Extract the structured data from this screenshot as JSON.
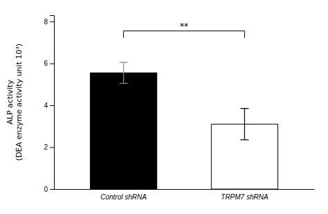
{
  "chart_data": {
    "type": "bar",
    "categories": [
      "Control shRNA",
      "TRPM7 shRNA"
    ],
    "values": [
      5.55,
      3.1
    ],
    "errors": [
      0.5,
      0.75
    ],
    "colors": [
      "black",
      "white"
    ],
    "ylabel": "ALP activity\n(DEA enzyme activity unit 10³)",
    "ylim": [
      0,
      8.3
    ],
    "yticks": [
      0,
      2,
      4,
      6,
      8
    ],
    "annotations": [
      {
        "text": "**",
        "y": 7.55,
        "between": [
          0,
          1
        ]
      }
    ]
  }
}
